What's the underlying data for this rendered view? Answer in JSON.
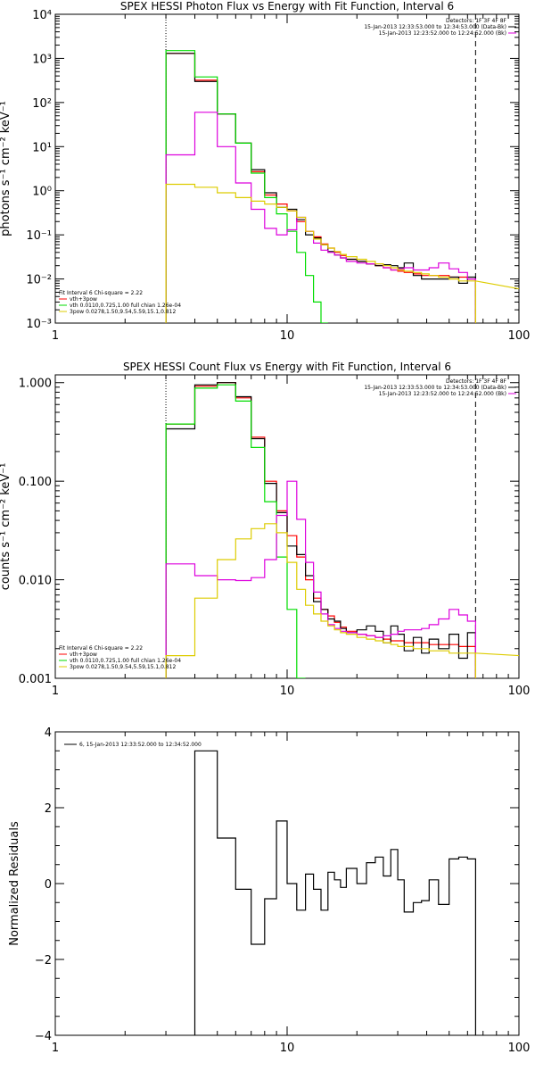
{
  "chart_data": [
    {
      "type": "line",
      "title": "SPEX HESSI Photon Flux vs Energy with Fit Function, Interval 6",
      "ylabel": "photons s⁻¹ cm⁻² keV⁻¹",
      "xlabel": "",
      "xscale": "log",
      "yscale": "log",
      "xlim": [
        1,
        100
      ],
      "ylim": [
        0.001,
        10000
      ],
      "x_ticks": [
        "1",
        "10",
        "100"
      ],
      "y_ticks": [
        "10⁻³",
        "10⁻²",
        "10⁻¹",
        "10⁰",
        "10¹",
        "10²",
        "10³",
        "10⁴"
      ],
      "vlines": {
        "dotted": 3.0,
        "dashed": 65.0
      },
      "header_lines": [
        "Detectors: 1F 3F 4F 8F",
        "15-Jan-2013 12:33:53.000 to 12:34:53.000 (Data-Bk)",
        "15-Jan-2013 12:23:52.000 to 12:24:52.000 (Bk)"
      ],
      "fit_lines": [
        "Fit Interval 6    Chi-square = 2.22",
        "vth+3pow",
        "vth 0.0110,0.725,1.00   full chian 1.26e-04",
        "3pow 0.0278,1.50,9.54,5.59,15.1,0.812"
      ],
      "edges": [
        3.0,
        4.0,
        5.0,
        6.0,
        7.0,
        8.0,
        9.0,
        10.0,
        11.0,
        12.0,
        13.0,
        14.0,
        15.0,
        16.0,
        17.0,
        18.0,
        20.0,
        22.0,
        24.0,
        26.0,
        28.0,
        30.0,
        32.0,
        35.0,
        38.0,
        41.0,
        45.0,
        50.0,
        55.0,
        60.0,
        65.0
      ],
      "series": [
        {
          "color": "#ff0000",
          "values": [
            1300,
            320,
            55,
            12,
            2.7,
            0.8,
            0.5,
            0.35,
            0.2,
            0.12,
            0.09,
            0.062,
            0.05,
            0.04,
            0.034,
            0.028,
            0.025,
            0.022,
            0.02,
            0.018,
            0.016,
            0.015,
            0.014,
            0.013,
            0.012,
            0.012,
            0.012,
            0.011,
            0.011,
            0.01
          ]
        },
        {
          "color": "#000000",
          "values": [
            1300,
            300,
            55,
            12,
            3.0,
            0.9,
            0.42,
            0.38,
            0.22,
            0.1,
            0.085,
            0.06,
            0.042,
            0.035,
            0.03,
            0.028,
            0.025,
            0.022,
            0.02,
            0.021,
            0.02,
            0.018,
            0.023,
            0.012,
            0.01,
            0.01,
            0.01,
            0.011,
            0.008,
            0.011
          ]
        },
        {
          "color": "#00dd00",
          "values": [
            1500,
            380,
            55,
            12,
            2.5,
            0.7,
            0.3,
            0.12,
            0.04,
            0.012,
            0.003,
            0.001,
            null,
            null,
            null,
            null,
            null,
            null,
            null,
            null,
            null,
            null,
            null,
            null,
            null,
            null,
            null,
            null,
            null,
            null
          ]
        },
        {
          "color": "#dd00dd",
          "values": [
            6.5,
            60,
            10,
            1.5,
            0.38,
            0.14,
            0.1,
            0.13,
            0.25,
            0.12,
            0.065,
            0.045,
            0.04,
            0.035,
            0.03,
            0.025,
            0.023,
            0.022,
            0.022,
            0.018,
            0.016,
            0.017,
            0.018,
            0.016,
            0.016,
            0.018,
            0.023,
            0.017,
            0.014,
            0.01
          ]
        },
        {
          "color": "#ddcc00",
          "values": [
            1.4,
            1.2,
            0.9,
            0.7,
            0.58,
            0.5,
            0.42,
            0.35,
            0.25,
            0.12,
            0.08,
            0.06,
            0.05,
            0.042,
            0.036,
            0.032,
            0.028,
            0.025,
            0.022,
            0.02,
            0.018,
            0.016,
            0.015,
            0.014,
            0.013,
            0.012,
            0.011,
            0.01,
            0.009,
            0.009
          ]
        }
      ],
      "extension": {
        "color": "#ddcc00",
        "from": 65.0,
        "to": 100.0,
        "y0": 0.009,
        "y1": 0.006
      }
    },
    {
      "type": "line",
      "title": "SPEX HESSI Count Flux vs Energy with Fit Function, Interval 6",
      "ylabel": "counts s⁻¹ cm⁻² keV⁻¹",
      "xlabel": "",
      "xscale": "log",
      "yscale": "log",
      "xlim": [
        1,
        100
      ],
      "ylim": [
        0.001,
        1.2
      ],
      "x_ticks": [
        "1",
        "10",
        "100"
      ],
      "y_ticks": [
        "0.001",
        "0.010",
        "0.100",
        "1.000"
      ],
      "vlines": {
        "dotted": 3.0,
        "dashed": 65.0
      },
      "header_lines": [
        "Detectors: 1F 3F 4F 8F",
        "15-Jan-2013 12:33:53.000 to 12:34:53.000 (Data-Bk)",
        "15-Jan-2013 12:23:52.000 to 12:24:52.000 (Bk)"
      ],
      "fit_lines": [
        "Fit Interval 6    Chi-square = 2.22",
        "vth+3pow",
        "vth 0.0110,0.725,1.00   full chian 1.26e-04",
        "3pow 0.0278,1.50,9.54,5.59,15.1,0.812"
      ],
      "edges": [
        3.0,
        4.0,
        5.0,
        6.0,
        7.0,
        8.0,
        9.0,
        10.0,
        11.0,
        12.0,
        13.0,
        14.0,
        15.0,
        16.0,
        17.0,
        18.0,
        20.0,
        22.0,
        24.0,
        26.0,
        28.0,
        30.0,
        32.0,
        35.0,
        38.0,
        41.0,
        45.0,
        50.0,
        55.0,
        60.0,
        65.0
      ],
      "series": [
        {
          "color": "#ff0000",
          "values": [
            0.38,
            0.92,
            1.0,
            0.7,
            0.28,
            0.1,
            0.05,
            0.028,
            0.017,
            0.01,
            0.0065,
            0.005,
            0.0043,
            0.0037,
            0.0033,
            0.003,
            0.0028,
            0.0027,
            0.0026,
            0.0025,
            0.0024,
            0.0024,
            0.0023,
            0.0023,
            0.0023,
            0.0022,
            0.0022,
            0.0022,
            0.0021,
            0.0021
          ]
        },
        {
          "color": "#000000",
          "values": [
            0.34,
            0.95,
            1.0,
            0.72,
            0.27,
            0.095,
            0.048,
            0.022,
            0.018,
            0.011,
            0.006,
            0.005,
            0.004,
            0.0038,
            0.0032,
            0.0029,
            0.0031,
            0.0034,
            0.003,
            0.0023,
            0.0034,
            0.0028,
            0.0019,
            0.0026,
            0.0018,
            0.0025,
            0.002,
            0.0028,
            0.0016,
            0.0029
          ]
        },
        {
          "color": "#00dd00",
          "values": [
            0.38,
            0.88,
            0.95,
            0.65,
            0.22,
            0.062,
            0.017,
            0.005,
            0.001,
            null,
            null,
            null,
            null,
            null,
            null,
            null,
            null,
            null,
            null,
            null,
            null,
            null,
            null,
            null,
            null,
            null,
            null,
            null,
            null,
            null
          ]
        },
        {
          "color": "#dd00dd",
          "values": [
            0.0145,
            0.011,
            0.01,
            0.0098,
            0.0105,
            0.016,
            0.045,
            0.1,
            0.041,
            0.015,
            0.0075,
            0.0045,
            0.0035,
            0.0032,
            0.003,
            0.0029,
            0.0028,
            0.0027,
            0.0026,
            0.0027,
            0.0028,
            0.003,
            0.0031,
            0.0031,
            0.0032,
            0.0035,
            0.004,
            0.005,
            0.0044,
            0.0038
          ]
        },
        {
          "color": "#ddcc00",
          "values": [
            0.0017,
            0.0065,
            0.016,
            0.026,
            0.033,
            0.037,
            0.03,
            0.015,
            0.008,
            0.0055,
            0.0045,
            0.0038,
            0.0034,
            0.0031,
            0.0029,
            0.0028,
            0.0026,
            0.0025,
            0.0024,
            0.0023,
            0.0022,
            0.0021,
            0.0021,
            0.002,
            0.002,
            0.0019,
            0.0019,
            0.0018,
            0.0018,
            0.0018
          ]
        }
      ],
      "extension": {
        "color": "#ddcc00",
        "from": 65.0,
        "to": 100.0,
        "y0": 0.0018,
        "y1": 0.0017
      }
    },
    {
      "type": "line",
      "title": "",
      "ylabel": "Normalized Residuals",
      "xlabel": "",
      "xscale": "log",
      "yscale": "linear",
      "xlim": [
        1,
        100
      ],
      "ylim": [
        -4,
        4
      ],
      "x_ticks": [
        "1",
        "10",
        "100"
      ],
      "y_ticks": [
        "−4",
        "−2",
        "0",
        "2",
        "4"
      ],
      "legend": "6, 15-Jan-2013 12:33:52.000 to 12:34:52.000",
      "edges": [
        4.0,
        5.0,
        6.0,
        7.0,
        8.0,
        9.0,
        10.0,
        11.0,
        12.0,
        13.0,
        14.0,
        15.0,
        16.0,
        17.0,
        18.0,
        20.0,
        22.0,
        24.0,
        26.0,
        28.0,
        30.0,
        32.0,
        35.0,
        38.0,
        41.0,
        45.0,
        50.0,
        55.0,
        60.0,
        65.0
      ],
      "series": [
        {
          "color": "#000000",
          "values": [
            3.5,
            1.2,
            -0.15,
            -1.6,
            -0.4,
            1.65,
            0.0,
            -0.7,
            0.25,
            -0.15,
            -0.7,
            0.3,
            0.1,
            -0.1,
            0.4,
            0.0,
            0.55,
            0.7,
            0.2,
            0.9,
            0.1,
            -0.75,
            -0.5,
            -0.45,
            0.1,
            -0.55,
            0.65,
            0.7,
            0.65
          ]
        }
      ]
    }
  ]
}
